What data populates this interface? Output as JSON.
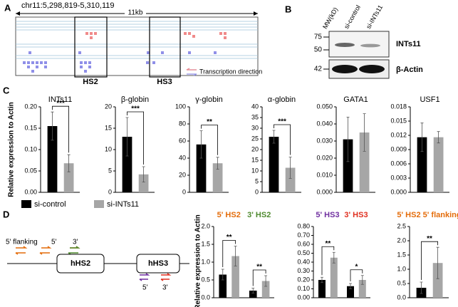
{
  "panel_labels": [
    "A",
    "B",
    "C",
    "D"
  ],
  "genome": {
    "region": "chr11:5,298,819-5,310,119",
    "scale": "11kb",
    "hs2": "HS2",
    "hs3": "HS3",
    "legend": "Transcription direction"
  },
  "blot": {
    "mw_header": "MW(kD)",
    "lanes": [
      "si-control",
      "si-INTs11"
    ],
    "markers": [
      75,
      50,
      42
    ],
    "proteins": [
      "INTs11",
      "β-Actin"
    ]
  },
  "diagram": {
    "flank": "5' flanking",
    "hs2_5": "5'",
    "hs2_3": "3'",
    "box1": "hHS2",
    "box2": "hHS3",
    "hs3_5": "5'",
    "hs3_3": "3'"
  },
  "chart_data": [
    {
      "type": "bar",
      "title": "INTs11",
      "ylabel": "Relative expression to Actin",
      "ylim": [
        0,
        0.2
      ],
      "yticks": [
        {
          "value": 0,
          "label": "0.00"
        },
        0.05,
        {
          "value": 0.1,
          "label": "0.10"
        },
        0.15,
        {
          "value": 0.2,
          "label": "0.20"
        }
      ],
      "series": [
        {
          "name": "si-control",
          "color": "#000000",
          "values": [
            0.155
          ],
          "errors": [
            0.033
          ]
        },
        {
          "name": "si-INTs11",
          "color": "#a6a6a6",
          "values": [
            0.068
          ],
          "errors": [
            0.02
          ]
        }
      ],
      "significance": [
        "***"
      ]
    },
    {
      "type": "bar",
      "title": "β-globin",
      "ylim": [
        0,
        20
      ],
      "yticks": [
        0,
        5,
        10,
        15,
        20
      ],
      "series": [
        {
          "name": "si-control",
          "color": "#000000",
          "values": [
            13
          ],
          "errors": [
            4.5
          ]
        },
        {
          "name": "si-INTs11",
          "color": "#a6a6a6",
          "values": [
            4.2
          ],
          "errors": [
            1.8
          ]
        }
      ],
      "significance": [
        "***"
      ]
    },
    {
      "type": "bar",
      "title": "γ-globin",
      "ylim": [
        0,
        100
      ],
      "yticks": [
        0,
        20,
        40,
        60,
        80,
        100
      ],
      "series": [
        {
          "name": "si-control",
          "color": "#000000",
          "values": [
            56
          ],
          "errors": [
            16
          ]
        },
        {
          "name": "si-INTs11",
          "color": "#a6a6a6",
          "values": [
            34
          ],
          "errors": [
            7
          ]
        }
      ],
      "significance": [
        "**"
      ]
    },
    {
      "type": "bar",
      "title": "α-globin",
      "ylim": [
        0,
        40
      ],
      "yticks": [
        0,
        5,
        10,
        15,
        20,
        25,
        30,
        35,
        40
      ],
      "series": [
        {
          "name": "si-control",
          "color": "#000000",
          "values": [
            26
          ],
          "errors": [
            3
          ]
        },
        {
          "name": "si-INTs11",
          "color": "#a6a6a6",
          "values": [
            11.5
          ],
          "errors": [
            5
          ]
        }
      ],
      "significance": [
        "***"
      ]
    },
    {
      "type": "bar",
      "title": "GATA1",
      "ylim": [
        0,
        0.05
      ],
      "yticks": [
        {
          "value": 0,
          "label": "0.000"
        },
        {
          "value": 0.01,
          "label": "0.010"
        },
        {
          "value": 0.02,
          "label": "0.020"
        },
        {
          "value": 0.03,
          "label": "0.030"
        },
        {
          "value": 0.04,
          "label": "0.040"
        },
        {
          "value": 0.05,
          "label": "0.050"
        }
      ],
      "series": [
        {
          "name": "si-control",
          "color": "#000000",
          "values": [
            0.031
          ],
          "errors": [
            0.013
          ]
        },
        {
          "name": "si-INTs11",
          "color": "#a6a6a6",
          "values": [
            0.035
          ],
          "errors": [
            0.011
          ]
        }
      ]
    },
    {
      "type": "bar",
      "title": "USF1",
      "ylim": [
        0,
        0.018
      ],
      "yticks": [
        {
          "value": 0,
          "label": "0.000"
        },
        {
          "value": 0.003,
          "label": "0.003"
        },
        {
          "value": 0.006,
          "label": "0.006"
        },
        {
          "value": 0.009,
          "label": "0.009"
        },
        {
          "value": 0.012,
          "label": "0.012"
        },
        {
          "value": 0.015,
          "label": "0.015"
        },
        {
          "value": 0.018,
          "label": "0.018"
        }
      ],
      "series": [
        {
          "name": "si-control",
          "color": "#000000",
          "values": [
            0.0116
          ],
          "errors": [
            0.003
          ]
        },
        {
          "name": "si-INTs11",
          "color": "#a6a6a6",
          "values": [
            0.0116
          ],
          "errors": [
            0.0012
          ]
        }
      ]
    },
    {
      "type": "bar",
      "ylabel": "Relative expression to Actin",
      "categories": [
        "5' HS2",
        "3' HS2"
      ],
      "category_colors": [
        "#e46c0a",
        "#4f8a2f"
      ],
      "ylim": [
        0,
        2
      ],
      "yticks": [
        {
          "value": 0,
          "label": "0.0"
        },
        0.5,
        {
          "value": 1,
          "label": "1.0"
        },
        1.5,
        {
          "value": 2,
          "label": "2.0"
        }
      ],
      "series": [
        {
          "name": "si-control",
          "color": "#000000",
          "values": [
            0.65,
            0.2
          ],
          "errors": [
            0.15,
            0.07
          ]
        },
        {
          "name": "si-INTs11",
          "color": "#a6a6a6",
          "values": [
            1.17,
            0.47
          ],
          "errors": [
            0.28,
            0.15
          ]
        }
      ],
      "significance": [
        "**",
        "**"
      ]
    },
    {
      "type": "bar",
      "categories": [
        "5' HS3",
        "3' HS3"
      ],
      "category_colors": [
        "#7030a0",
        "#e03020"
      ],
      "ylim": [
        0,
        0.8
      ],
      "yticks": [
        {
          "value": 0,
          "label": "0.00"
        },
        {
          "value": 0.1,
          "label": "0.10"
        },
        {
          "value": 0.2,
          "label": "0.20"
        },
        {
          "value": 0.3,
          "label": "0.30"
        },
        {
          "value": 0.4,
          "label": "0.40"
        },
        {
          "value": 0.5,
          "label": "0.50"
        },
        {
          "value": 0.6,
          "label": "0.60"
        },
        {
          "value": 0.7,
          "label": "0.70"
        },
        {
          "value": 0.8,
          "label": "0.80"
        }
      ],
      "series": [
        {
          "name": "si-control",
          "color": "#000000",
          "values": [
            0.2,
            0.13
          ],
          "errors": [
            0.03,
            0.03
          ]
        },
        {
          "name": "si-INTs11",
          "color": "#a6a6a6",
          "values": [
            0.45,
            0.2
          ],
          "errors": [
            0.06,
            0.05
          ]
        }
      ],
      "significance": [
        "**",
        "*"
      ]
    },
    {
      "type": "bar",
      "categories": [
        "5' HS2 5' flanking"
      ],
      "category_colors": [
        "#e46c0a"
      ],
      "ylim": [
        0,
        2.5
      ],
      "yticks": [
        {
          "value": 0,
          "label": "0.0"
        },
        0.5,
        {
          "value": 1,
          "label": "1.0"
        },
        1.5,
        {
          "value": 2,
          "label": "2.0"
        },
        2.5
      ],
      "series": [
        {
          "name": "si-control",
          "color": "#000000",
          "values": [
            0.35
          ],
          "errors": [
            0.2
          ]
        },
        {
          "name": "si-INTs11",
          "color": "#a6a6a6",
          "values": [
            1.22
          ],
          "errors": [
            0.55
          ]
        }
      ],
      "significance": [
        "**"
      ]
    }
  ]
}
